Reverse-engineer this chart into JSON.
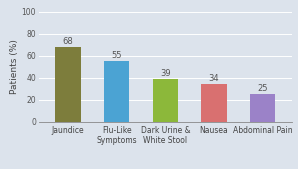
{
  "categories": [
    "Jaundice",
    "Flu-Like\nSymptoms",
    "Dark Urine &\nWhite Stool",
    "Nausea",
    "Abdominal Pain"
  ],
  "values": [
    68,
    55,
    39,
    34,
    25
  ],
  "bar_colors": [
    "#7d7d3c",
    "#4ba3d3",
    "#8cb83a",
    "#d97070",
    "#9b82c8"
  ],
  "ylabel": "Patients (%)",
  "ylim": [
    0,
    100
  ],
  "yticks": [
    0,
    20,
    40,
    60,
    80,
    100
  ],
  "background_color": "#dce3ec",
  "plot_bg_color": "#dce3ec",
  "label_fontsize": 5.5,
  "value_fontsize": 6.0,
  "ylabel_fontsize": 6.5,
  "tick_fontsize": 5.5,
  "bar_width": 0.52,
  "grid_color": "#ffffff"
}
